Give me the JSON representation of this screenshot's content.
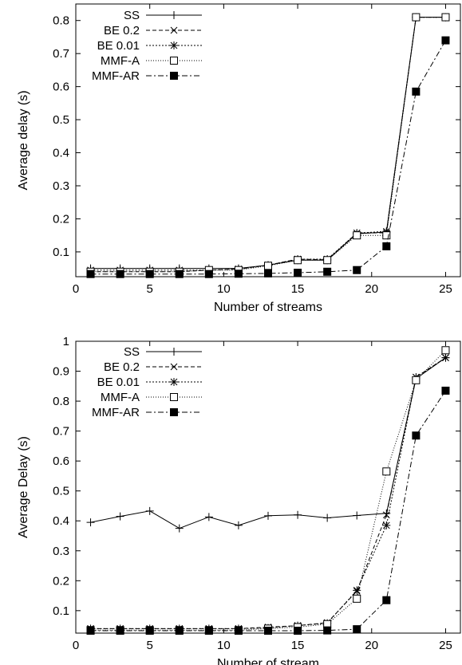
{
  "chart_data": [
    {
      "type": "line",
      "xlabel": "Number of streams",
      "ylabel": "Average delay (s)",
      "xlim": [
        0,
        26
      ],
      "ylim": [
        0.025,
        0.85
      ],
      "xticks": [
        0,
        5,
        10,
        15,
        20,
        25
      ],
      "yticks": [
        0.1,
        0.2,
        0.3,
        0.4,
        0.5,
        0.6,
        0.7,
        0.8
      ],
      "legend_position": "top-left",
      "x": [
        1,
        3,
        5,
        7,
        9,
        11,
        13,
        15,
        17,
        19,
        21,
        23,
        25
      ],
      "series": [
        {
          "name": "SS",
          "marker": "plus",
          "dash": "solid",
          "values": [
            0.05,
            0.05,
            0.05,
            0.05,
            0.05,
            0.05,
            0.06,
            0.075,
            0.075,
            0.155,
            0.16,
            0.81,
            0.81
          ]
        },
        {
          "name": "BE 0.2",
          "marker": "cross",
          "dash": "dashed",
          "values": [
            0.04,
            0.04,
            0.04,
            0.04,
            0.045,
            0.048,
            0.06,
            0.078,
            0.076,
            0.157,
            0.158,
            0.81,
            0.81
          ]
        },
        {
          "name": "BE 0.01",
          "marker": "star",
          "dash": "dotted",
          "values": [
            0.045,
            0.045,
            0.045,
            0.045,
            0.045,
            0.048,
            0.06,
            0.078,
            0.078,
            0.157,
            0.162,
            0.81,
            0.81
          ]
        },
        {
          "name": "MMF-A",
          "marker": "open-square",
          "dash": "dotted-fine",
          "values": [
            0.04,
            0.04,
            0.04,
            0.04,
            0.045,
            0.045,
            0.058,
            0.075,
            0.075,
            0.15,
            0.15,
            0.81,
            0.81
          ]
        },
        {
          "name": "MMF-AR",
          "marker": "filled-square",
          "dash": "dashdot",
          "values": [
            0.033,
            0.033,
            0.033,
            0.033,
            0.033,
            0.034,
            0.035,
            0.037,
            0.04,
            0.045,
            0.117,
            0.585,
            0.74
          ]
        }
      ]
    },
    {
      "type": "line",
      "xlabel": "Number of stream",
      "ylabel": "Average Delay (s)",
      "xlim": [
        0,
        26
      ],
      "ylim": [
        0.025,
        1.0
      ],
      "xticks": [
        0,
        5,
        10,
        15,
        20,
        25
      ],
      "yticks": [
        0.1,
        0.2,
        0.3,
        0.4,
        0.5,
        0.6,
        0.7,
        0.8,
        0.9,
        1
      ],
      "legend_position": "top-left",
      "x": [
        1,
        3,
        5,
        7,
        9,
        11,
        13,
        15,
        17,
        19,
        21,
        23,
        25
      ],
      "series": [
        {
          "name": "SS",
          "marker": "plus",
          "dash": "solid",
          "values": [
            0.395,
            0.415,
            0.433,
            0.375,
            0.413,
            0.385,
            0.417,
            0.42,
            0.41,
            0.418,
            0.425,
            0.875,
            0.945
          ]
        },
        {
          "name": "BE 0.2",
          "marker": "cross",
          "dash": "dashed",
          "values": [
            0.04,
            0.04,
            0.04,
            0.04,
            0.04,
            0.04,
            0.045,
            0.05,
            0.06,
            0.165,
            0.42,
            0.88,
            0.945
          ]
        },
        {
          "name": "BE 0.01",
          "marker": "star",
          "dash": "dotted",
          "values": [
            0.04,
            0.04,
            0.04,
            0.04,
            0.04,
            0.04,
            0.042,
            0.05,
            0.058,
            0.168,
            0.385,
            0.88,
            0.945
          ]
        },
        {
          "name": "MMF-A",
          "marker": "open-square",
          "dash": "dotted-fine",
          "values": [
            0.035,
            0.035,
            0.035,
            0.035,
            0.035,
            0.035,
            0.04,
            0.045,
            0.055,
            0.14,
            0.565,
            0.87,
            0.97
          ]
        },
        {
          "name": "MMF-AR",
          "marker": "filled-square",
          "dash": "dashdot",
          "values": [
            0.033,
            0.033,
            0.033,
            0.033,
            0.033,
            0.033,
            0.033,
            0.033,
            0.034,
            0.038,
            0.135,
            0.685,
            0.835
          ]
        }
      ]
    }
  ]
}
